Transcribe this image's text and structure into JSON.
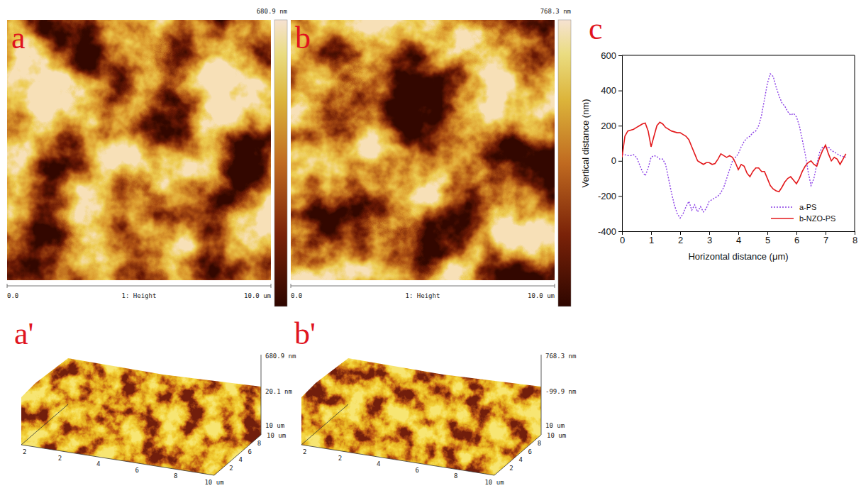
{
  "chart_data": [
    {
      "type": "afm_image",
      "label": "a",
      "colorbar_label": "680.9 nm",
      "scale_labels": [
        "0.0",
        "1: Height",
        "10.0 um"
      ]
    },
    {
      "type": "afm_image",
      "label": "b",
      "colorbar_label": "768.3 nm",
      "scale_labels": [
        "0.0",
        "1: Height",
        "10.0 um"
      ]
    },
    {
      "type": "afm_3d",
      "label": "a'",
      "z_labels": [
        "680.9 nm",
        "20.1 nm",
        "10 um"
      ],
      "depth_ticks": [
        "2",
        "4",
        "6",
        "8",
        "10 um"
      ],
      "x_ticks": [
        "2",
        "4",
        "6",
        "8",
        "10 um"
      ],
      "side_ticks": [
        "2"
      ]
    },
    {
      "type": "afm_3d",
      "label": "b'",
      "z_labels": [
        "768.3 nm",
        "-99.9 nm",
        "10 um"
      ],
      "depth_ticks": [
        "2",
        "4",
        "6",
        "8",
        "10 um"
      ],
      "x_ticks": [
        "2",
        "4",
        "6",
        "8",
        "10 um"
      ],
      "side_ticks": [
        "2"
      ]
    },
    {
      "type": "line",
      "label": "c",
      "x_label": "Horizontal distance (μm)",
      "y_label": "Vertical distance (nm)",
      "xlim": [
        0,
        8
      ],
      "ylim": [
        -400,
        600
      ],
      "xticks": [
        0,
        1,
        2,
        3,
        4,
        5,
        6,
        7,
        8
      ],
      "yticks": [
        -400,
        -200,
        0,
        200,
        400,
        600
      ],
      "legend": "lower right",
      "x": [
        0,
        0.1,
        0.2,
        0.3,
        0.4,
        0.5,
        0.6,
        0.7,
        0.8,
        0.9,
        1,
        1.1,
        1.2,
        1.3,
        1.4,
        1.5,
        1.6,
        1.7,
        1.8,
        1.9,
        2,
        2.1,
        2.2,
        2.3,
        2.4,
        2.5,
        2.6,
        2.7,
        2.8,
        2.9,
        3,
        3.1,
        3.2,
        3.3,
        3.4,
        3.5,
        3.6,
        3.7,
        3.8,
        3.9,
        4,
        4.1,
        4.2,
        4.3,
        4.4,
        4.5,
        4.6,
        4.7,
        4.8,
        4.9,
        5,
        5.1,
        5.2,
        5.3,
        5.4,
        5.5,
        5.6,
        5.7,
        5.8,
        5.9,
        6,
        6.1,
        6.2,
        6.3,
        6.4,
        6.5,
        6.6,
        6.7,
        6.8,
        6.9,
        7,
        7.1,
        7.2,
        7.3,
        7.4,
        7.5,
        7.6,
        7.7
      ],
      "series": [
        {
          "name": "a-PS",
          "color": "#8a3ee6",
          "line_style": "dotted",
          "values": [
            40,
            35,
            30,
            30,
            35,
            20,
            -20,
            -60,
            -85,
            -40,
            20,
            30,
            25,
            10,
            10,
            -20,
            -100,
            -180,
            -250,
            -300,
            -325,
            -300,
            -260,
            -230,
            -280,
            -250,
            -290,
            -260,
            -290,
            -270,
            -230,
            -220,
            -210,
            -200,
            -180,
            -150,
            -100,
            -50,
            0,
            20,
            40,
            80,
            110,
            130,
            140,
            160,
            170,
            200,
            260,
            350,
            440,
            495,
            480,
            420,
            370,
            330,
            310,
            280,
            260,
            270,
            250,
            200,
            120,
            40,
            -60,
            -140,
            -100,
            -20,
            50,
            80,
            70,
            80,
            60,
            50,
            40,
            30,
            25,
            20
          ]
        },
        {
          "name": "b-NZO-PS",
          "color": "#e3191c",
          "line_style": "solid",
          "values": [
            20,
            140,
            170,
            175,
            180,
            190,
            200,
            210,
            215,
            170,
            80,
            140,
            200,
            220,
            210,
            190,
            180,
            170,
            165,
            160,
            160,
            150,
            140,
            120,
            80,
            40,
            0,
            -10,
            -20,
            -10,
            -10,
            -20,
            -15,
            10,
            40,
            30,
            20,
            30,
            20,
            -10,
            -50,
            -20,
            -30,
            -70,
            -90,
            -60,
            -40,
            -40,
            -60,
            -60,
            -100,
            -140,
            -160,
            -170,
            -175,
            -150,
            -120,
            -100,
            -90,
            -110,
            -130,
            -100,
            -60,
            -30,
            -10,
            0,
            -20,
            -30,
            20,
            60,
            90,
            40,
            0,
            20,
            10,
            -20,
            10,
            40
          ]
        }
      ]
    }
  ]
}
